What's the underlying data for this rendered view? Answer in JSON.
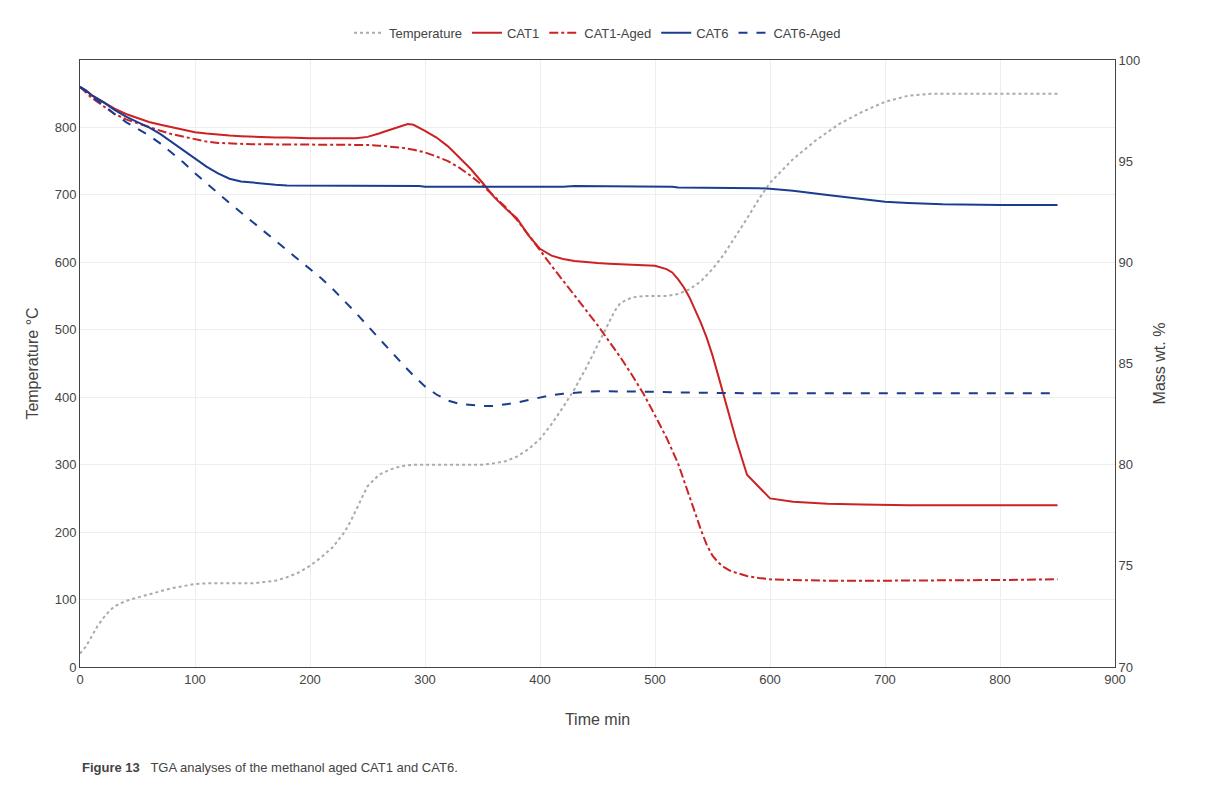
{
  "chart_data": {
    "type": "line",
    "xlabel": "Time min",
    "ylabel": "Temperature °C",
    "y2label": "Mass wt. %",
    "annotations": [
      "Figure 13",
      "   TGA analyses of the methanol aged CAT1 and CAT6."
    ],
    "xlim": [
      0,
      900
    ],
    "ylim": [
      0,
      900
    ],
    "y2lim": [
      70,
      100
    ],
    "xticks": [
      0,
      100,
      200,
      300,
      400,
      500,
      600,
      700,
      800,
      900
    ],
    "yticks": [
      0,
      100,
      200,
      300,
      400,
      500,
      600,
      700,
      800
    ],
    "y2ticks": [
      70,
      75,
      80,
      85,
      90,
      95,
      100
    ],
    "grid": true,
    "legend": "top",
    "series": [
      {
        "name": "Temperature",
        "color": "#aaaaaa",
        "line_style": "dotted",
        "x": [
          0,
          5,
          10,
          15,
          20,
          25,
          30,
          40,
          50,
          60,
          70,
          80,
          90,
          100,
          110,
          120,
          130,
          150,
          160,
          170,
          180,
          190,
          200,
          210,
          220,
          230,
          235,
          240,
          245,
          250,
          260,
          270,
          280,
          290,
          300,
          310,
          320,
          330,
          340,
          350,
          360,
          370,
          380,
          390,
          400,
          410,
          420,
          430,
          440,
          445,
          450,
          455,
          460,
          465,
          470,
          480,
          490,
          500,
          510,
          520,
          530,
          540,
          550,
          560,
          570,
          580,
          590,
          600,
          620,
          640,
          660,
          680,
          700,
          720,
          740,
          760,
          780,
          800,
          820,
          840,
          850
        ],
        "values": [
          20,
          30,
          45,
          60,
          72,
          82,
          90,
          98,
          103,
          108,
          113,
          117,
          120,
          123,
          124,
          124,
          124,
          124,
          126,
          128,
          133,
          140,
          150,
          163,
          178,
          200,
          215,
          233,
          252,
          268,
          285,
          293,
          298,
          300,
          300,
          300,
          300,
          300,
          300,
          300,
          302,
          305,
          312,
          323,
          338,
          360,
          385,
          412,
          443,
          460,
          477,
          495,
          512,
          528,
          540,
          548,
          550,
          550,
          550,
          553,
          560,
          572,
          590,
          612,
          638,
          665,
          693,
          718,
          753,
          781,
          805,
          823,
          838,
          847,
          850,
          850,
          850,
          850,
          850,
          850,
          850
        ]
      },
      {
        "name": "CAT1",
        "color": "#cc2222",
        "line_style": "solid",
        "x": [
          0,
          5,
          10,
          20,
          30,
          40,
          50,
          60,
          70,
          80,
          90,
          100,
          110,
          120,
          130,
          140,
          150,
          160,
          170,
          180,
          190,
          200,
          210,
          220,
          230,
          240,
          250,
          255,
          260,
          265,
          270,
          275,
          280,
          285,
          290,
          295,
          300,
          310,
          320,
          330,
          340,
          350,
          360,
          370,
          380,
          390,
          400,
          410,
          420,
          430,
          440,
          450,
          460,
          470,
          480,
          490,
          500,
          510,
          515,
          520,
          525,
          530,
          535,
          540,
          545,
          550,
          555,
          560,
          570,
          580,
          600,
          620,
          650,
          680,
          700,
          720,
          750,
          800,
          850
        ],
        "values": [
          860,
          855,
          848,
          838,
          828,
          820,
          814,
          808,
          804,
          800,
          797,
          793,
          791,
          789,
          788,
          787,
          786,
          785,
          785,
          785,
          784,
          784,
          784,
          784,
          784,
          784,
          786,
          788,
          791,
          794,
          797,
          800,
          803,
          805,
          804,
          800,
          795,
          785,
          772,
          755,
          738,
          718,
          697,
          680,
          665,
          640,
          620,
          610,
          605,
          602,
          600,
          599,
          598,
          597,
          597,
          596,
          595,
          590,
          585,
          575,
          563,
          548,
          530,
          510,
          488,
          462,
          432,
          400,
          340,
          285,
          250,
          245,
          242,
          241,
          240,
          240,
          240,
          240,
          240
        ]
      },
      {
        "name": "CAT1-Aged",
        "color": "#cc2222",
        "line_style": "dashdot",
        "x": [
          0,
          5,
          10,
          20,
          30,
          40,
          50,
          60,
          70,
          80,
          90,
          100,
          110,
          120,
          130,
          140,
          150,
          160,
          170,
          180,
          190,
          200,
          210,
          220,
          230,
          240,
          250,
          260,
          270,
          280,
          290,
          300,
          310,
          320,
          330,
          340,
          350,
          360,
          370,
          380,
          390,
          400,
          410,
          420,
          430,
          440,
          450,
          460,
          470,
          480,
          490,
          500,
          510,
          520,
          525,
          530,
          535,
          540,
          545,
          550,
          555,
          560,
          565,
          570,
          575,
          580,
          590,
          600,
          620,
          650,
          700,
          750,
          800,
          850
        ],
        "values": [
          860,
          852,
          844,
          832,
          820,
          812,
          806,
          800,
          795,
          790,
          786,
          782,
          779,
          777,
          776,
          775,
          775,
          775,
          775,
          775,
          775,
          775,
          775,
          775,
          775,
          775,
          774,
          773,
          772,
          770,
          767,
          763,
          757,
          750,
          740,
          728,
          714,
          698,
          682,
          663,
          641,
          618,
          595,
          573,
          551,
          529,
          507,
          483,
          459,
          433,
          405,
          373,
          340,
          302,
          278,
          255,
          228,
          203,
          181,
          165,
          155,
          148,
          143,
          140,
          137,
          135,
          132,
          130,
          129,
          128,
          128,
          128,
          129,
          130
        ]
      },
      {
        "name": "CAT6",
        "color": "#1a3d8f",
        "line_style": "solid",
        "x": [
          0,
          5,
          10,
          20,
          30,
          40,
          50,
          60,
          70,
          80,
          90,
          100,
          110,
          120,
          130,
          140,
          150,
          160,
          170,
          180,
          190,
          200,
          210,
          220,
          230,
          240,
          250,
          260,
          270,
          280,
          290,
          295,
          300,
          310,
          320,
          330,
          340,
          350,
          360,
          370,
          380,
          390,
          400,
          410,
          420,
          430,
          440,
          450,
          460,
          470,
          480,
          490,
          500,
          510,
          515,
          520,
          525,
          530,
          540,
          550,
          560,
          570,
          580,
          590,
          600,
          620,
          650,
          680,
          700,
          720,
          750,
          800,
          850
        ],
        "values": [
          860,
          855,
          848,
          838,
          826,
          816,
          808,
          800,
          790,
          778,
          766,
          754,
          742,
          732,
          724,
          720,
          718,
          716,
          715,
          714,
          714,
          714,
          714,
          714,
          714,
          713,
          713,
          713,
          713,
          713,
          713,
          713,
          712,
          712,
          712,
          712,
          712,
          711,
          711,
          711,
          711,
          711,
          711,
          712,
          712,
          713,
          713,
          713,
          713,
          713,
          712,
          712,
          712,
          712,
          712,
          711,
          711,
          711,
          711,
          710,
          710,
          710,
          710,
          710,
          709,
          706,
          700,
          694,
          690,
          688,
          686,
          685,
          685
        ]
      },
      {
        "name": "CAT6-Aged",
        "color": "#1a3d8f",
        "line_style": "dashed",
        "x": [
          0,
          5,
          10,
          20,
          30,
          40,
          50,
          60,
          70,
          80,
          90,
          100,
          110,
          120,
          130,
          140,
          150,
          160,
          170,
          180,
          190,
          200,
          210,
          220,
          230,
          240,
          250,
          260,
          270,
          280,
          290,
          300,
          310,
          320,
          330,
          340,
          350,
          360,
          370,
          380,
          390,
          400,
          410,
          420,
          430,
          440,
          450,
          460,
          470,
          480,
          490,
          500,
          520,
          550,
          580,
          600,
          650,
          700,
          750,
          800,
          850
        ],
        "values": [
          860,
          854,
          846,
          834,
          820,
          808,
          798,
          788,
          776,
          762,
          748,
          732,
          717,
          702,
          688,
          674,
          660,
          646,
          632,
          618,
          604,
          590,
          576,
          560,
          543,
          525,
          506,
          487,
          468,
          450,
          432,
          416,
          404,
          395,
          390,
          388,
          387,
          387,
          389,
          392,
          396,
          400,
          403,
          405,
          407,
          408,
          409,
          409,
          409,
          409,
          408,
          408,
          407,
          406,
          406,
          406,
          406,
          406,
          406,
          406,
          406
        ]
      }
    ]
  }
}
